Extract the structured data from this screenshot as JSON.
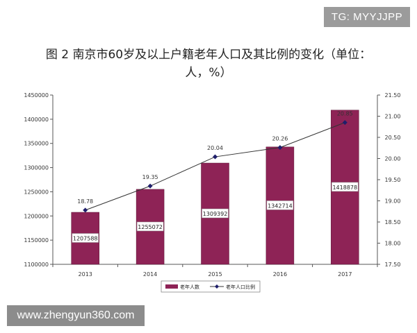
{
  "watermark_top": "TG: MYYJJPP",
  "watermark_bottom": "www.zhengyun360.com",
  "chart_data": {
    "type": "bar",
    "title": "图 2  南京市60岁及以上户籍老年人口及其比例的变化（单位：人，%）",
    "categories": [
      "2013",
      "2014",
      "2015",
      "2016",
      "2017"
    ],
    "series": [
      {
        "name": "老年人数",
        "type": "bar",
        "axis": "left",
        "values": [
          1207588,
          1255072,
          1309392,
          1342714,
          1418878
        ],
        "labels": [
          "1207588",
          "1255072",
          "1309392",
          "1342714",
          "1418878"
        ],
        "color": "#8e2356"
      },
      {
        "name": "老年人口比例",
        "type": "line",
        "axis": "right",
        "values": [
          18.78,
          19.35,
          20.04,
          20.26,
          20.85
        ],
        "labels": [
          "18.78",
          "19.35",
          "20.04",
          "20.26",
          "20.85"
        ],
        "color": "#1f1f6b"
      }
    ],
    "y_left": {
      "min": 1100000,
      "max": 1450000,
      "ticks": [
        "1100000",
        "1150000",
        "1200000",
        "1250000",
        "1300000",
        "1350000",
        "1400000",
        "1450000"
      ]
    },
    "y_right": {
      "min": 17.5,
      "max": 21.5,
      "ticks": [
        "17.50",
        "18.00",
        "18.50",
        "19.00",
        "19.50",
        "20.00",
        "20.50",
        "21.00",
        "21.50"
      ]
    },
    "grid": false,
    "legend_position": "bottom"
  }
}
